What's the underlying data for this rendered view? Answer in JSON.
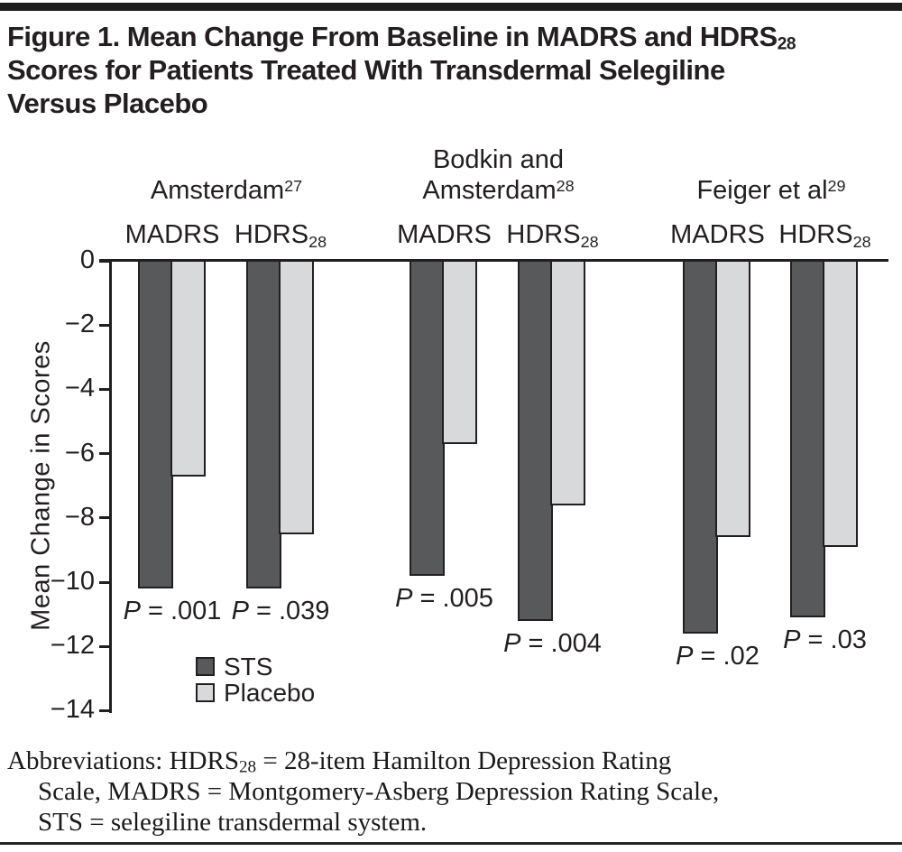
{
  "figure": {
    "title": {
      "line1": "Figure 1. Mean Change From Baseline in MADRS and HDRS",
      "line1_sub": "28",
      "line2": "Scores for Patients Treated With Transdermal Selegiline",
      "line3": "Versus Placebo"
    },
    "footer": {
      "line1_a": "Abbreviations: HDRS",
      "line1_sub": "28",
      "line1_b": " = 28-item Hamilton Depression Rating",
      "line2": "Scale, MADRS = Montgomery-Asberg Depression Rating Scale,",
      "line3": "STS = selegiline transdermal system."
    }
  },
  "chart_data": {
    "type": "bar",
    "ylabel": "Mean Change in Scores",
    "ylim": [
      -14,
      0
    ],
    "yticks": [
      0,
      -2,
      -4,
      -6,
      -8,
      -10,
      -12,
      -14
    ],
    "ytick_labels": [
      "0",
      "−2",
      "−4",
      "−6",
      "−8",
      "−10",
      "−12",
      "−14"
    ],
    "legend": [
      {
        "name": "STS",
        "color": "#58595b"
      },
      {
        "name": "Placebo",
        "color": "#d8d9da"
      }
    ],
    "colors": {
      "sts": "#58595b",
      "placebo": "#d8d9da",
      "ink": "#231f20"
    },
    "categories": [
      "MADRS",
      "HDRS28",
      "MADRS",
      "HDRS28",
      "MADRS",
      "HDRS28"
    ],
    "series": [
      {
        "name": "STS",
        "values": [
          -10.2,
          -10.2,
          -9.8,
          -11.2,
          -11.6,
          -11.1
        ]
      },
      {
        "name": "Placebo",
        "values": [
          -6.7,
          -8.5,
          -5.7,
          -7.6,
          -8.6,
          -8.9
        ]
      }
    ],
    "groups": [
      {
        "name_lines": [
          {
            "text": "Amsterdam",
            "sup": "27"
          }
        ],
        "pairs": [
          {
            "scale": "MADRS",
            "scale_sub": "",
            "sts": -10.2,
            "placebo": -6.7,
            "p_prefix": "P",
            "p_rest": " = .001"
          },
          {
            "scale": "HDRS",
            "scale_sub": "28",
            "sts": -10.2,
            "placebo": -8.5,
            "p_prefix": "P",
            "p_rest": " = .039"
          }
        ]
      },
      {
        "name_lines": [
          {
            "text": "Bodkin and",
            "sup": ""
          },
          {
            "text": "Amsterdam",
            "sup": "28"
          }
        ],
        "pairs": [
          {
            "scale": "MADRS",
            "scale_sub": "",
            "sts": -9.8,
            "placebo": -5.7,
            "p_prefix": "P",
            "p_rest": " = .005"
          },
          {
            "scale": "HDRS",
            "scale_sub": "28",
            "sts": -11.2,
            "placebo": -7.6,
            "p_prefix": "P",
            "p_rest": " = .004"
          }
        ]
      },
      {
        "name_lines": [
          {
            "text": "Feiger et al",
            "sup": "29"
          }
        ],
        "pairs": [
          {
            "scale": "MADRS",
            "scale_sub": "",
            "sts": -11.6,
            "placebo": -8.6,
            "p_prefix": "P",
            "p_rest": " = .02"
          },
          {
            "scale": "HDRS",
            "scale_sub": "28",
            "sts": -11.1,
            "placebo": -8.9,
            "p_prefix": "P",
            "p_rest": " = .03"
          }
        ]
      }
    ]
  }
}
